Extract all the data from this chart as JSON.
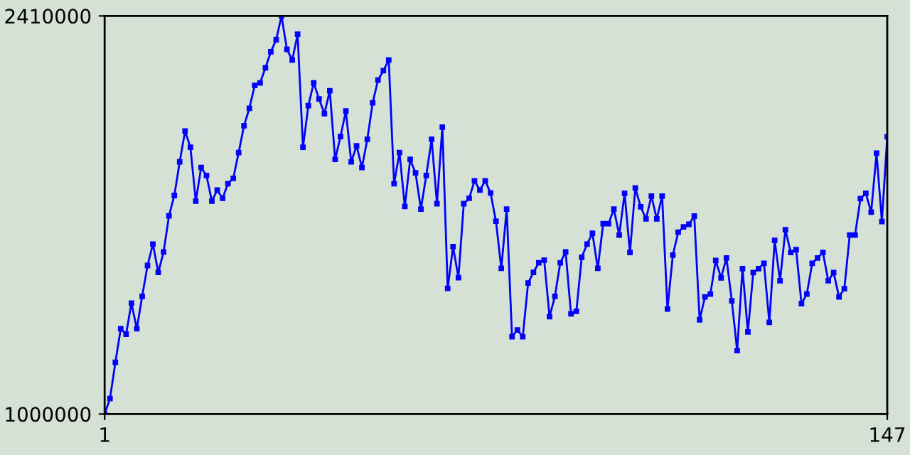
{
  "chart_data": {
    "type": "line",
    "x": [
      1,
      2,
      3,
      4,
      5,
      6,
      7,
      8,
      9,
      10,
      11,
      12,
      13,
      14,
      15,
      16,
      17,
      18,
      19,
      20,
      21,
      22,
      23,
      24,
      25,
      26,
      27,
      28,
      29,
      30,
      31,
      32,
      33,
      34,
      35,
      36,
      37,
      38,
      39,
      40,
      41,
      42,
      43,
      44,
      45,
      46,
      47,
      48,
      49,
      50,
      51,
      52,
      53,
      54,
      55,
      56,
      57,
      58,
      59,
      60,
      61,
      62,
      63,
      64,
      65,
      66,
      67,
      68,
      69,
      70,
      71,
      72,
      73,
      74,
      75,
      76,
      77,
      78,
      79,
      80,
      81,
      82,
      83,
      84,
      85,
      86,
      87,
      88,
      89,
      90,
      91,
      92,
      93,
      94,
      95,
      96,
      97,
      98,
      99,
      100,
      101,
      102,
      103,
      104,
      105,
      106,
      107,
      108,
      109,
      110,
      111,
      112,
      113,
      114,
      115,
      116,
      117,
      118,
      119,
      120,
      121,
      122,
      123,
      124,
      125,
      126,
      127,
      128,
      129,
      130,
      131,
      132,
      133,
      134,
      135,
      136,
      137,
      138,
      139,
      140,
      141,
      142,
      143,
      144,
      145,
      146,
      147
    ],
    "series": [
      {
        "color": "#0000ff",
        "values": [
          1000000,
          1055000,
          1183000,
          1302000,
          1283000,
          1393000,
          1302000,
          1417000,
          1526000,
          1602000,
          1502000,
          1574000,
          1702000,
          1774000,
          1893000,
          2002000,
          1945000,
          1754000,
          1873000,
          1845000,
          1754000,
          1793000,
          1764000,
          1816000,
          1835000,
          1926000,
          2021000,
          2083000,
          2164000,
          2173000,
          2226000,
          2283000,
          2326000,
          2410000,
          2292000,
          2254000,
          2345000,
          1945000,
          2092000,
          2173000,
          2116000,
          2064000,
          2145000,
          1902000,
          1983000,
          2073000,
          1893000,
          1950000,
          1873000,
          1973000,
          2102000,
          2183000,
          2216000,
          2254000,
          1816000,
          1926000,
          1735000,
          1902000,
          1854000,
          1726000,
          1845000,
          1973000,
          1745000,
          2016000,
          1445000,
          1593000,
          1483000,
          1745000,
          1764000,
          1826000,
          1793000,
          1826000,
          1783000,
          1683000,
          1516000,
          1726000,
          1274000,
          1298000,
          1274000,
          1464000,
          1502000,
          1536000,
          1545000,
          1345000,
          1417000,
          1536000,
          1574000,
          1355000,
          1364000,
          1555000,
          1602000,
          1640000,
          1516000,
          1674000,
          1674000,
          1726000,
          1634000,
          1782000,
          1572000,
          1801000,
          1734000,
          1691000,
          1772000,
          1691000,
          1772000,
          1372000,
          1563000,
          1644000,
          1663000,
          1672000,
          1701000,
          1334000,
          1415000,
          1425000,
          1544000,
          1482000,
          1553000,
          1401000,
          1225000,
          1515000,
          1291000,
          1501000,
          1515000,
          1534000,
          1325000,
          1615000,
          1472000,
          1653000,
          1572000,
          1582000,
          1391000,
          1425000,
          1534000,
          1553000,
          1572000,
          1472000,
          1501000,
          1415000,
          1444000,
          1634000,
          1634000,
          1763000,
          1782000,
          1715000,
          1924000,
          1682000,
          1982000
        ]
      }
    ],
    "xlim": [
      1,
      147
    ],
    "xticks": [
      1,
      147
    ],
    "ylim": [
      1000000,
      2410000
    ],
    "yticks": [
      1000000,
      2410000
    ],
    "marker": "square",
    "line_style": "solid",
    "grid": false
  }
}
